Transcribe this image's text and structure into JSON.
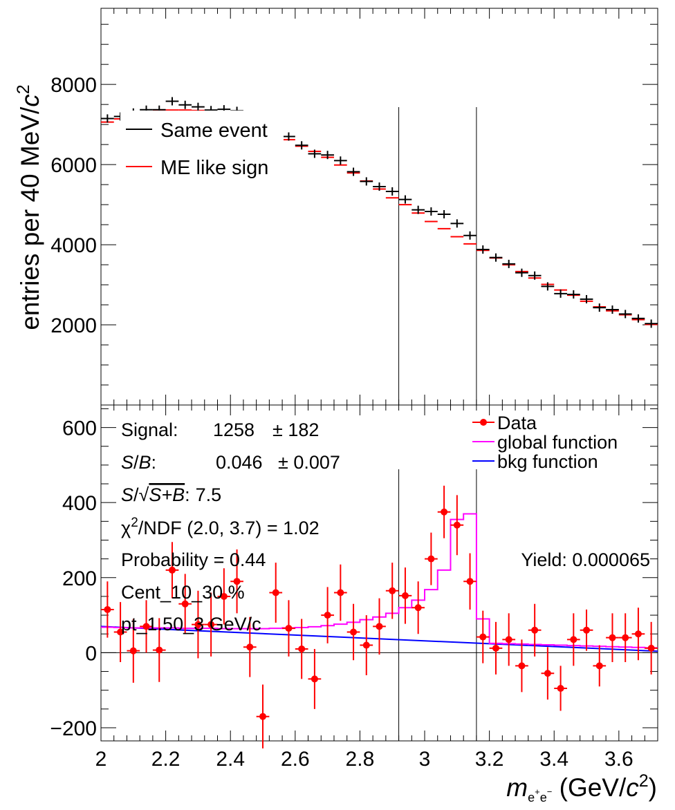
{
  "chart_data": [
    {
      "type": "scatter",
      "panel": "top",
      "ylabel": "entries per 40 MeV/c²",
      "ylabel_parts": [
        "entries per 40 MeV/",
        "c",
        "2"
      ],
      "xlim": [
        2.0,
        3.72
      ],
      "ylim": [
        0,
        9900
      ],
      "yticks": [
        2000,
        4000,
        6000,
        8000
      ],
      "ytick_labels": [
        "2000",
        "4000",
        "6000",
        "8000"
      ],
      "legend": {
        "placement": "top-left",
        "entries": [
          "Same event",
          "ME like sign"
        ]
      },
      "vlines": [
        2.92,
        3.16
      ],
      "series": [
        {
          "name": "Same event",
          "color": "#000000",
          "x": [
            2.02,
            2.06,
            2.1,
            2.14,
            2.18,
            2.22,
            2.26,
            2.3,
            2.34,
            2.38,
            2.42,
            2.46,
            2.5,
            2.54,
            2.58,
            2.62,
            2.66,
            2.7,
            2.74,
            2.78,
            2.82,
            2.86,
            2.9,
            2.94,
            2.98,
            3.02,
            3.06,
            3.1,
            3.14,
            3.18,
            3.22,
            3.26,
            3.3,
            3.34,
            3.38,
            3.42,
            3.46,
            3.5,
            3.54,
            3.58,
            3.62,
            3.66,
            3.7
          ],
          "y": [
            7150,
            7200,
            7300,
            7370,
            7370,
            7580,
            7490,
            7440,
            7360,
            7380,
            7340,
            7200,
            7100,
            6950,
            6700,
            6480,
            6270,
            6240,
            6100,
            5820,
            5580,
            5450,
            5330,
            5130,
            4870,
            4830,
            4760,
            4530,
            4230,
            3880,
            3680,
            3520,
            3300,
            3230,
            2960,
            2780,
            2760,
            2640,
            2430,
            2380,
            2270,
            2160,
            2030
          ]
        },
        {
          "name": "ME like sign",
          "color": "#ff0000",
          "x": [
            2.02,
            2.06,
            2.1,
            2.14,
            2.18,
            2.22,
            2.26,
            2.3,
            2.34,
            2.38,
            2.42,
            2.46,
            2.5,
            2.54,
            2.58,
            2.62,
            2.66,
            2.7,
            2.74,
            2.78,
            2.82,
            2.86,
            2.9,
            2.94,
            2.98,
            3.02,
            3.06,
            3.1,
            3.14,
            3.18,
            3.22,
            3.26,
            3.3,
            3.34,
            3.38,
            3.42,
            3.46,
            3.5,
            3.54,
            3.58,
            3.62,
            3.66,
            3.7
          ],
          "y": [
            7060,
            7140,
            7240,
            7310,
            7350,
            7360,
            7360,
            7350,
            7330,
            7310,
            7290,
            7180,
            7050,
            6860,
            6620,
            6460,
            6330,
            6180,
            5990,
            5790,
            5590,
            5390,
            5170,
            5000,
            4790,
            4580,
            4400,
            4200,
            4020,
            3860,
            3670,
            3500,
            3330,
            3170,
            3010,
            2870,
            2740,
            2590,
            2450,
            2350,
            2250,
            2130,
            2010
          ]
        }
      ]
    },
    {
      "type": "scatter",
      "panel": "bottom",
      "xlabel": "m_{e+e-} (GeV/c²)",
      "xlabel_parts": [
        "m",
        "e",
        "+",
        "e",
        "−",
        " (GeV/",
        "c",
        "2",
        ")"
      ],
      "xlim": [
        2.0,
        3.72
      ],
      "ylim": [
        -235,
        660
      ],
      "xticks": [
        2,
        2.2,
        2.4,
        2.6,
        2.8,
        3,
        3.2,
        3.4,
        3.6
      ],
      "xtick_labels": [
        "2",
        "2.2",
        "2.4",
        "2.6",
        "2.8",
        "3",
        "3.2",
        "3.4",
        "3.6"
      ],
      "yticks": [
        -200,
        0,
        200,
        400,
        600
      ],
      "ytick_labels": [
        "−200",
        "0",
        "200",
        "400",
        "600"
      ],
      "legend": {
        "placement": "top-right",
        "entries": [
          "Data",
          "global function",
          "bkg function"
        ]
      },
      "vlines": [
        2.92,
        3.16
      ],
      "stats": {
        "signal_label": "Signal:",
        "signal_value": "1258",
        "signal_error": "± 182",
        "sb_label_parts": [
          "S",
          "/",
          "B",
          ":"
        ],
        "sb_value": "0.046",
        "sb_error": "± 0.007",
        "significance_label_parts": [
          "S",
          "/√",
          "S+B",
          ":"
        ],
        "significance_value": "7.5",
        "chi2_parts": [
          "χ",
          "2",
          "/NDF (2.0, 3.7) = 1.02"
        ],
        "probability": "Probability = 0.44",
        "centrality": "Cent_10_30 %",
        "pt": "pt_1.50_3 GeV/c",
        "yield": "Yield: 0.000065"
      },
      "series": [
        {
          "name": "Data",
          "color": "#ff0000",
          "x": [
            2.02,
            2.06,
            2.1,
            2.14,
            2.18,
            2.22,
            2.26,
            2.3,
            2.34,
            2.38,
            2.42,
            2.46,
            2.5,
            2.54,
            2.58,
            2.62,
            2.66,
            2.7,
            2.74,
            2.78,
            2.82,
            2.86,
            2.9,
            2.94,
            2.98,
            3.02,
            3.06,
            3.1,
            3.14,
            3.18,
            3.22,
            3.26,
            3.3,
            3.34,
            3.38,
            3.42,
            3.46,
            3.5,
            3.54,
            3.58,
            3.62,
            3.66,
            3.7
          ],
          "y": [
            115,
            55,
            5,
            70,
            7,
            220,
            130,
            75,
            75,
            150,
            190,
            15,
            -170,
            160,
            65,
            10,
            -70,
            100,
            160,
            55,
            20,
            70,
            165,
            152,
            120,
            250,
            375,
            340,
            190,
            42,
            12,
            35,
            -35,
            60,
            -55,
            -95,
            35,
            60,
            -35,
            40,
            40,
            50,
            12
          ],
          "yerr": [
            75,
            80,
            85,
            70,
            85,
            75,
            80,
            90,
            85,
            75,
            85,
            80,
            85,
            80,
            75,
            80,
            80,
            75,
            75,
            75,
            80,
            75,
            75,
            75,
            70,
            70,
            70,
            80,
            75,
            70,
            70,
            70,
            70,
            70,
            70,
            60,
            70,
            55,
            55,
            65,
            65,
            70,
            70
          ]
        },
        {
          "name": "global function",
          "color": "#ff00ff",
          "bin_edges": [
            2.0,
            2.04,
            2.08,
            2.12,
            2.16,
            2.2,
            2.24,
            2.28,
            2.32,
            2.36,
            2.4,
            2.44,
            2.48,
            2.52,
            2.56,
            2.6,
            2.64,
            2.68,
            2.72,
            2.76,
            2.8,
            2.84,
            2.88,
            2.92,
            2.96,
            3.0,
            3.04,
            3.08,
            3.12,
            3.16,
            3.2,
            3.24,
            3.28,
            3.32,
            3.36,
            3.4,
            3.44,
            3.48,
            3.52,
            3.56,
            3.6,
            3.64,
            3.68,
            3.72
          ],
          "values": [
            68,
            67,
            66,
            66,
            66,
            66,
            65,
            65,
            65,
            64,
            64,
            64,
            64,
            65,
            66,
            67,
            69,
            72,
            76,
            81,
            88,
            95,
            105,
            120,
            140,
            168,
            220,
            355,
            370,
            90,
            25,
            24,
            23,
            22,
            21,
            20,
            19,
            18,
            17,
            16,
            15,
            14,
            13
          ]
        },
        {
          "name": "bkg function",
          "color": "#0000ff",
          "x": [
            2.0,
            3.72
          ],
          "y": [
            70,
            4
          ]
        }
      ]
    }
  ]
}
